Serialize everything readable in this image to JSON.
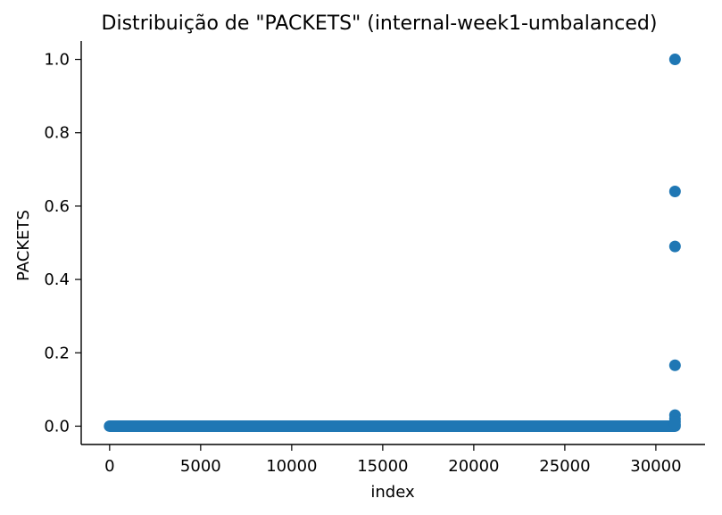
{
  "chart_data": {
    "type": "scatter",
    "title": "Distribuição de \"PACKETS\" (internal-week1-umbalanced)",
    "xlabel": "index",
    "ylabel": "PACKETS",
    "xlim": [
      -1560,
      32700
    ],
    "ylim": [
      -0.05,
      1.05
    ],
    "xticks": [
      0,
      5000,
      10000,
      15000,
      20000,
      25000,
      30000
    ],
    "xtick_labels": [
      "0",
      "5000",
      "10000",
      "15000",
      "20000",
      "25000",
      "30000"
    ],
    "yticks": [
      0.0,
      0.2,
      0.4,
      0.6,
      0.8,
      1.0
    ],
    "ytick_labels": [
      "0.0",
      "0.2",
      "0.4",
      "0.6",
      "0.8",
      "1.0"
    ],
    "grid": false,
    "legend": "none",
    "color": "#1f77b4",
    "dense_band": {
      "x_start": 0,
      "x_end": 31050,
      "y": 0.0
    },
    "series": [
      {
        "x": [
          31050,
          31050,
          31050,
          31050,
          31050,
          31050,
          31050,
          31050
        ],
        "y": [
          1.0,
          0.64,
          0.49,
          0.166,
          0.03,
          0.02,
          0.012,
          0.005
        ]
      }
    ]
  }
}
